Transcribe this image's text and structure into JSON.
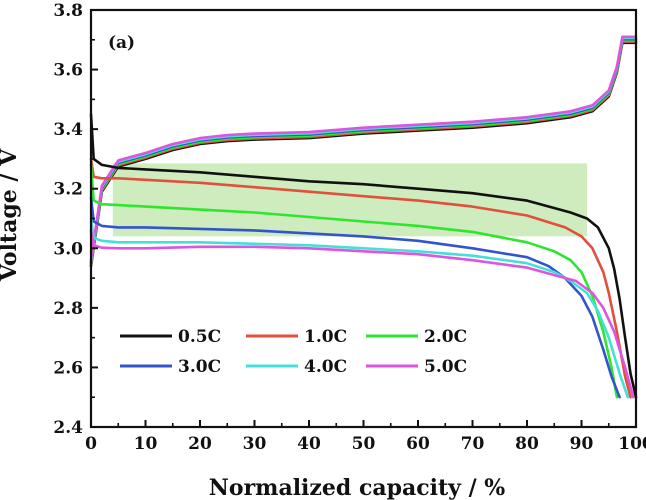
{
  "chart_data": {
    "type": "line",
    "panel_label": "(a)",
    "xlabel": "Normalized capacity / %",
    "ylabel": "Voltage / V",
    "xlim": [
      0,
      100
    ],
    "ylim": [
      2.4,
      3.8
    ],
    "xticks": [
      0,
      10,
      20,
      30,
      40,
      50,
      60,
      70,
      80,
      90,
      100
    ],
    "yticks": [
      2.4,
      2.6,
      2.8,
      3.0,
      3.2,
      3.4,
      3.6,
      3.8
    ],
    "highlight_band": {
      "x": [
        4,
        91
      ],
      "y": [
        3.04,
        3.285
      ],
      "color": "#c6e9b2"
    },
    "charge_curve": {
      "x": [
        0,
        2,
        5,
        10,
        15,
        20,
        25,
        30,
        40,
        50,
        60,
        70,
        80,
        88,
        92,
        95,
        96.5,
        97.5,
        100
      ],
      "y": [
        2.95,
        3.2,
        3.285,
        3.31,
        3.34,
        3.36,
        3.37,
        3.375,
        3.38,
        3.395,
        3.405,
        3.415,
        3.43,
        3.45,
        3.47,
        3.52,
        3.6,
        3.7,
        3.7
      ]
    },
    "series": [
      {
        "name": "0.5C",
        "color": "#111111",
        "x": [
          0,
          0.5,
          2,
          5,
          10,
          20,
          30,
          40,
          50,
          60,
          70,
          80,
          88,
          91,
          93,
          95,
          96,
          97,
          98,
          99,
          100
        ],
        "y": [
          3.45,
          3.3,
          3.28,
          3.27,
          3.265,
          3.255,
          3.24,
          3.225,
          3.215,
          3.2,
          3.185,
          3.16,
          3.12,
          3.1,
          3.07,
          3.0,
          2.93,
          2.83,
          2.7,
          2.58,
          2.5
        ]
      },
      {
        "name": "1.0C",
        "color": "#e0503c",
        "x": [
          0,
          0.5,
          2,
          5,
          10,
          20,
          30,
          40,
          50,
          60,
          70,
          80,
          87,
          90,
          92,
          94,
          95,
          96.5,
          98,
          99
        ],
        "y": [
          3.3,
          3.24,
          3.235,
          3.235,
          3.23,
          3.22,
          3.205,
          3.19,
          3.175,
          3.16,
          3.14,
          3.11,
          3.07,
          3.04,
          3.0,
          2.92,
          2.85,
          2.72,
          2.57,
          2.5
        ]
      },
      {
        "name": "2.0C",
        "color": "#2ee62e",
        "x": [
          0,
          0.5,
          2,
          5,
          10,
          20,
          30,
          40,
          50,
          60,
          70,
          80,
          85,
          88,
          90,
          92,
          94,
          95.5,
          96.5
        ],
        "y": [
          3.28,
          3.16,
          3.148,
          3.145,
          3.14,
          3.13,
          3.12,
          3.105,
          3.09,
          3.075,
          3.055,
          3.02,
          2.99,
          2.96,
          2.92,
          2.84,
          2.72,
          2.6,
          2.5
        ]
      },
      {
        "name": "3.0C",
        "color": "#3355cc",
        "x": [
          0,
          0.5,
          2,
          5,
          10,
          20,
          30,
          40,
          50,
          60,
          70,
          80,
          84,
          87,
          90,
          92,
          94,
          95.5,
          97
        ],
        "y": [
          3.17,
          3.09,
          3.075,
          3.07,
          3.07,
          3.065,
          3.06,
          3.05,
          3.04,
          3.025,
          3.0,
          2.97,
          2.94,
          2.9,
          2.84,
          2.77,
          2.66,
          2.57,
          2.5
        ]
      },
      {
        "name": "4.0C",
        "color": "#44e0d8",
        "x": [
          0,
          0.5,
          2,
          5,
          10,
          20,
          30,
          40,
          50,
          60,
          70,
          80,
          85,
          88,
          91,
          93,
          95,
          97,
          98.5
        ],
        "y": [
          3.1,
          3.035,
          3.025,
          3.02,
          3.02,
          3.02,
          3.015,
          3.01,
          3.0,
          2.99,
          2.975,
          2.95,
          2.92,
          2.89,
          2.85,
          2.79,
          2.7,
          2.58,
          2.5
        ]
      },
      {
        "name": "5.0C",
        "color": "#dd55dd",
        "x": [
          0,
          0.5,
          2,
          5,
          10,
          20,
          30,
          40,
          50,
          60,
          70,
          80,
          85,
          89,
          92,
          94,
          96,
          98,
          99.5
        ],
        "y": [
          3.06,
          3.01,
          3.002,
          3.0,
          3.0,
          3.005,
          3.005,
          3.0,
          2.99,
          2.98,
          2.96,
          2.935,
          2.91,
          2.89,
          2.85,
          2.8,
          2.72,
          2.6,
          2.5
        ]
      }
    ]
  }
}
